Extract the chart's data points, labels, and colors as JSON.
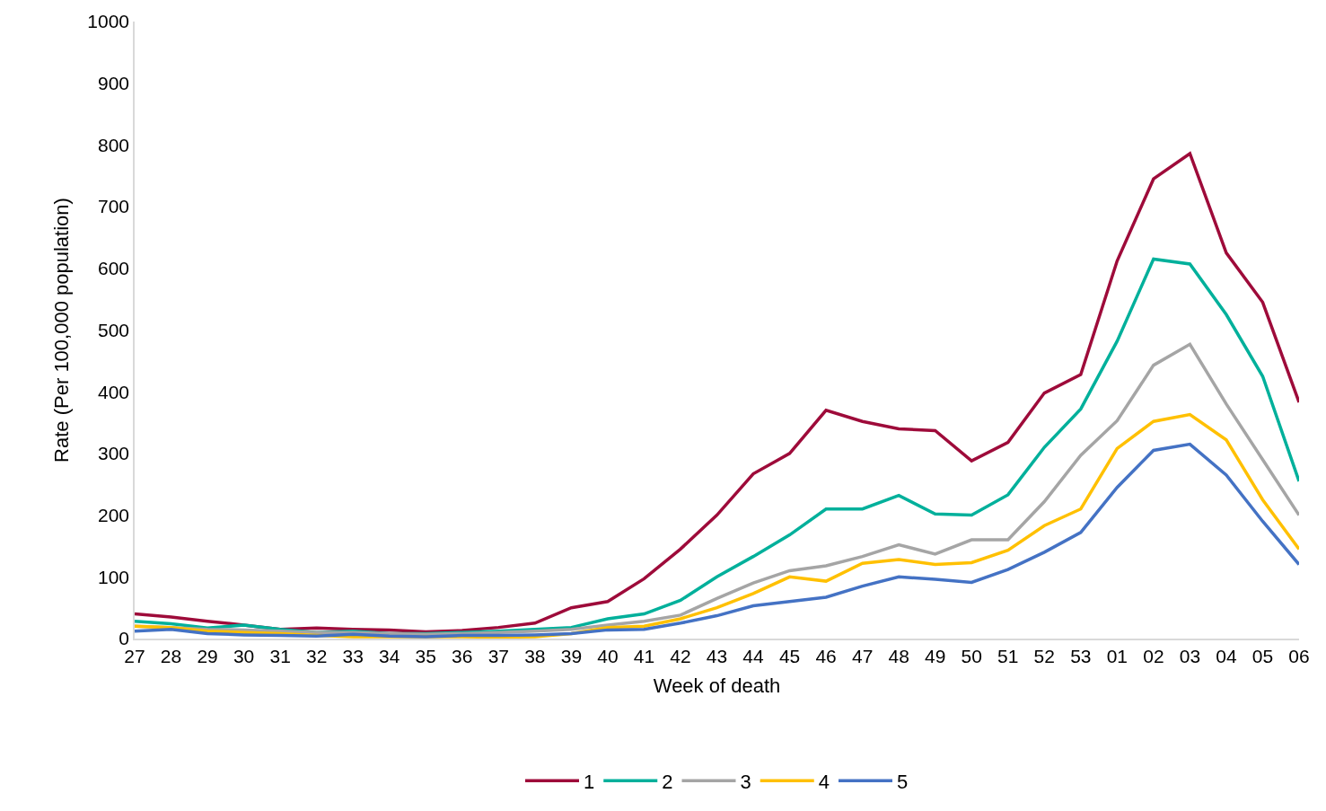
{
  "chart_data": {
    "type": "line",
    "xlabel": "Week of death",
    "ylabel": "Rate (Per 100,000 population)",
    "categories": [
      "27",
      "28",
      "29",
      "30",
      "31",
      "32",
      "33",
      "34",
      "35",
      "36",
      "37",
      "38",
      "39",
      "40",
      "41",
      "42",
      "43",
      "44",
      "45",
      "46",
      "47",
      "48",
      "49",
      "50",
      "51",
      "52",
      "53",
      "01",
      "02",
      "03",
      "04",
      "05",
      "06"
    ],
    "series": [
      {
        "name": "1",
        "color": "#9e0b3a",
        "values": [
          40,
          35,
          28,
          22,
          15,
          17,
          15,
          14,
          11,
          13,
          18,
          25,
          50,
          60,
          97,
          145,
          200,
          267,
          300,
          370,
          352,
          340,
          337,
          288,
          318,
          398,
          428,
          612,
          745,
          786,
          625,
          545,
          383
        ]
      },
      {
        "name": "2",
        "color": "#00b09b",
        "values": [
          28,
          24,
          17,
          22,
          15,
          10,
          12,
          8,
          8,
          10,
          12,
          15,
          18,
          32,
          40,
          62,
          100,
          133,
          168,
          210,
          210,
          232,
          202,
          200,
          233,
          310,
          372,
          482,
          615,
          607,
          525,
          425,
          255
        ]
      },
      {
        "name": "3",
        "color": "#a5a5a5",
        "values": [
          20,
          18,
          15,
          14,
          12,
          10,
          10,
          8,
          7,
          8,
          10,
          12,
          15,
          22,
          28,
          38,
          65,
          90,
          110,
          118,
          133,
          152,
          137,
          160,
          160,
          222,
          297,
          353,
          443,
          477,
          380,
          290,
          200
        ]
      },
      {
        "name": "4",
        "color": "#ffc000",
        "values": [
          20,
          18,
          12,
          10,
          8,
          5,
          3,
          3,
          3,
          3,
          2,
          3,
          8,
          18,
          20,
          32,
          50,
          73,
          100,
          93,
          122,
          128,
          120,
          123,
          143,
          183,
          210,
          308,
          352,
          363,
          322,
          225,
          145
        ]
      },
      {
        "name": "5",
        "color": "#4472c4",
        "values": [
          12,
          15,
          8,
          6,
          5,
          4,
          7,
          4,
          3,
          5,
          5,
          6,
          8,
          14,
          15,
          25,
          37,
          53,
          60,
          67,
          85,
          100,
          96,
          91,
          112,
          140,
          172,
          245,
          305,
          315,
          265,
          190,
          120
        ]
      }
    ],
    "ylim": [
      0,
      1000
    ],
    "yticks": [
      0,
      100,
      200,
      300,
      400,
      500,
      600,
      700,
      800,
      900,
      1000
    ],
    "legend": "bottom",
    "marker": "none",
    "line_style": "solid"
  }
}
